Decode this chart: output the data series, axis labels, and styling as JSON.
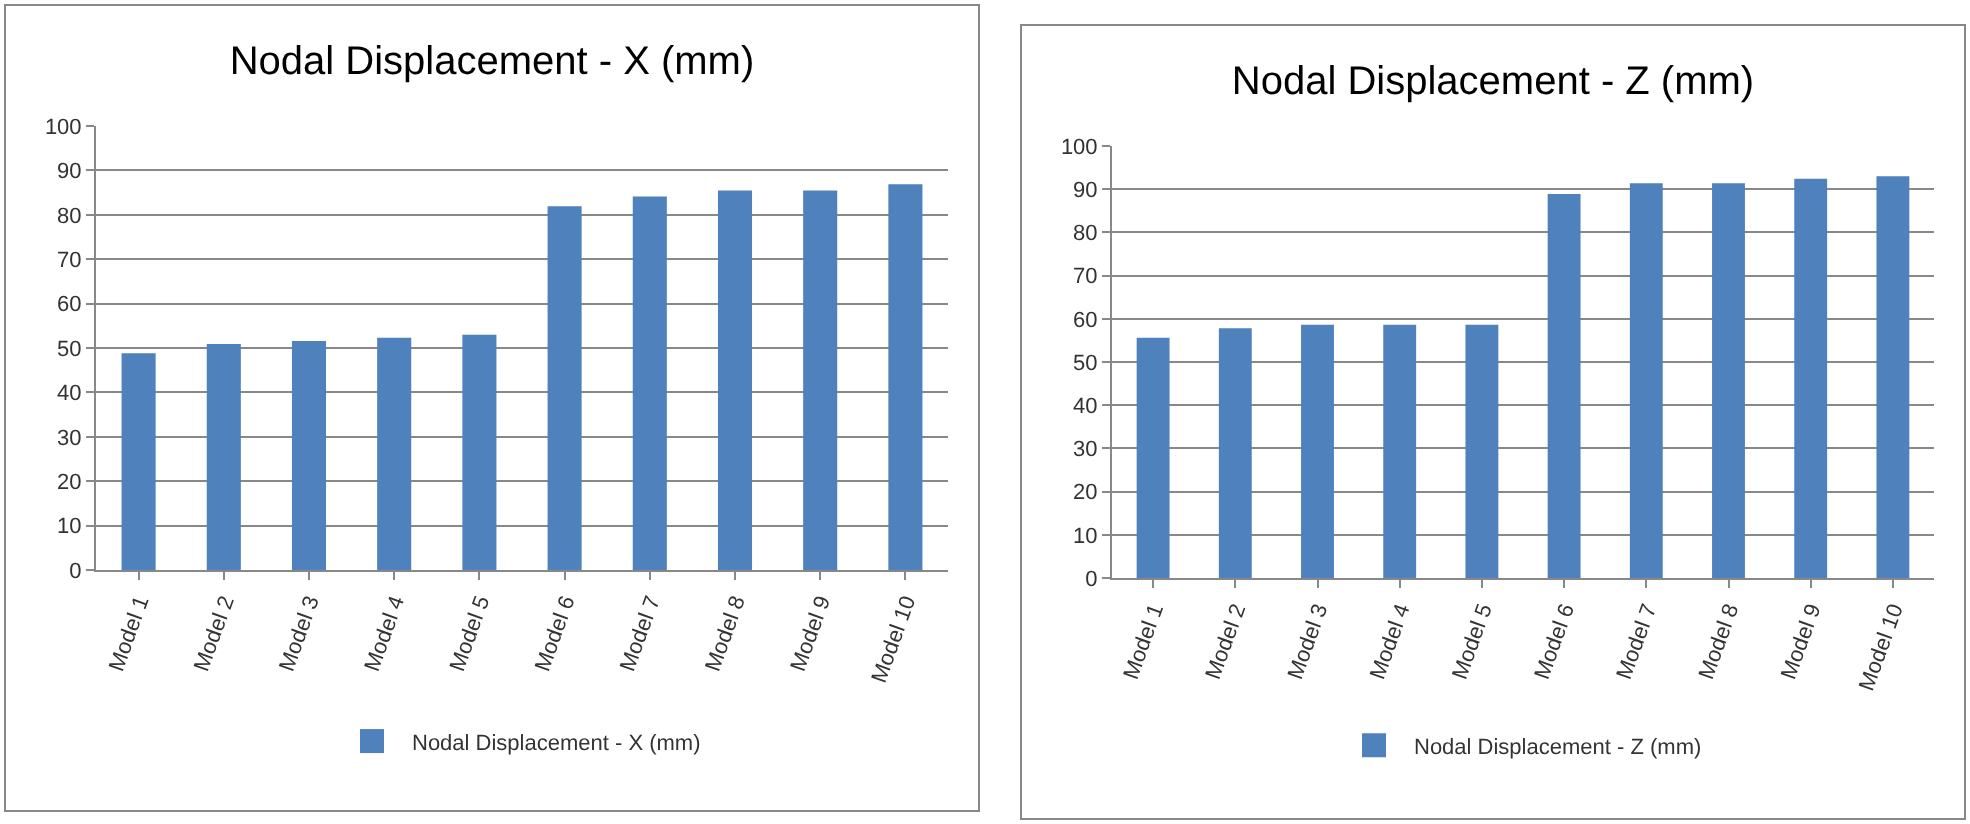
{
  "chart_data": [
    {
      "type": "bar",
      "title": "Nodal Displacement - X (mm)",
      "categories": [
        "Model 1",
        "Model 2",
        "Model 3",
        "Model 4",
        "Model 5",
        "Model 6",
        "Model 7",
        "Model 8",
        "Model 9",
        "Model 10"
      ],
      "series": [
        {
          "name": "Nodal Displacement - X (mm)",
          "color": "#4f81bd",
          "values": [
            48.8,
            50.9,
            51.6,
            52.3,
            53,
            81.9,
            84.1,
            85.5,
            85.5,
            86.9
          ]
        }
      ],
      "ylim": [
        0,
        100
      ],
      "yticks": [
        0,
        10,
        20,
        30,
        40,
        50,
        60,
        70,
        80,
        90,
        100
      ],
      "grid": "y",
      "legend": "bottom"
    },
    {
      "type": "bar",
      "title": "Nodal Displacement - Z (mm)",
      "categories": [
        "Model 1",
        "Model 2",
        "Model 3",
        "Model 4",
        "Model 5",
        "Model 6",
        "Model 7",
        "Model 8",
        "Model 9",
        "Model 10"
      ],
      "series": [
        {
          "name": "Nodal Displacement - Z (mm)",
          "color": "#4f81bd",
          "values": [
            55.6,
            57.8,
            58.6,
            58.6,
            58.6,
            88.9,
            91.4,
            91.4,
            92.4,
            93
          ]
        }
      ],
      "ylim": [
        0,
        100
      ],
      "yticks": [
        0,
        10,
        20,
        30,
        40,
        50,
        60,
        70,
        80,
        90,
        100
      ],
      "grid": "y",
      "legend": "bottom"
    }
  ]
}
